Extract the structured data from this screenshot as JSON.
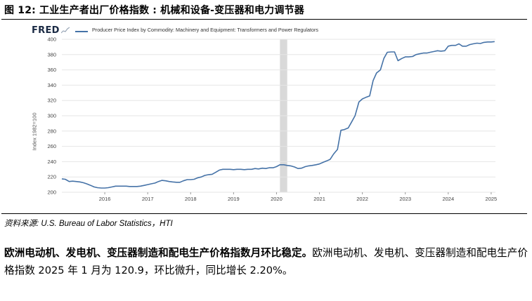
{
  "figure": {
    "title": "图 12: 工业生产者出厂价格指数 : 机械和设备-变压器和电力调节器",
    "source": "资料来源: U.S. Bureau of Labor Statistics，HTI"
  },
  "fred": {
    "logo": "FRED",
    "legend": "Producer Price Index by Commodity: Machinery and Equipment: Transformers and Power Regulators"
  },
  "paragraph": {
    "lead": "欧洲电动机、发电机、变压器制造和配电生产价格指数月环比稳定。",
    "text": "欧洲电动机、发电机、变压器制造和配电生产价格指数 2025 年 1 月为 120.9，环比微升，同比增长 2.20%。"
  },
  "colors": {
    "line": "#4572a7",
    "grid": "#e6e6e6",
    "recession": "#d9d9d9"
  },
  "chart_data": {
    "type": "line",
    "title": "",
    "ylabel": "Index 1982=100",
    "xlabel": "",
    "ylim": [
      200,
      400
    ],
    "yticks": [
      200,
      220,
      240,
      260,
      280,
      300,
      320,
      340,
      360,
      380,
      400
    ],
    "xticks": [
      "2016",
      "2017",
      "2018",
      "2019",
      "2020",
      "2021",
      "2022",
      "2023",
      "2024",
      "2025"
    ],
    "xlim": [
      2015.0,
      2025.1
    ],
    "recession": [
      2020.08,
      2020.25
    ],
    "grid": true,
    "legend_position": "top",
    "series": [
      {
        "name": "Producer Price Index by Commodity: Machinery and Equipment: Transformers and Power Regulators",
        "points": [
          [
            2015.0,
            217.5
          ],
          [
            2015.08,
            217
          ],
          [
            2015.17,
            214
          ],
          [
            2015.25,
            214.5
          ],
          [
            2015.33,
            214
          ],
          [
            2015.42,
            213.5
          ],
          [
            2015.5,
            212.5
          ],
          [
            2015.58,
            211
          ],
          [
            2015.67,
            209
          ],
          [
            2015.75,
            207
          ],
          [
            2015.83,
            206
          ],
          [
            2015.92,
            205.5
          ],
          [
            2016.0,
            205.5
          ],
          [
            2016.08,
            206
          ],
          [
            2016.17,
            207
          ],
          [
            2016.25,
            208
          ],
          [
            2016.33,
            208
          ],
          [
            2016.42,
            208
          ],
          [
            2016.5,
            208
          ],
          [
            2016.58,
            207.5
          ],
          [
            2016.67,
            207.5
          ],
          [
            2016.75,
            207.5
          ],
          [
            2016.83,
            208
          ],
          [
            2016.92,
            209
          ],
          [
            2017.0,
            210
          ],
          [
            2017.08,
            211
          ],
          [
            2017.17,
            212
          ],
          [
            2017.25,
            214
          ],
          [
            2017.33,
            215.5
          ],
          [
            2017.42,
            215
          ],
          [
            2017.5,
            214
          ],
          [
            2017.58,
            213.5
          ],
          [
            2017.67,
            213
          ],
          [
            2017.75,
            213
          ],
          [
            2017.83,
            215
          ],
          [
            2017.92,
            216.5
          ],
          [
            2018.0,
            216.5
          ],
          [
            2018.08,
            217
          ],
          [
            2018.17,
            219
          ],
          [
            2018.25,
            220
          ],
          [
            2018.33,
            222
          ],
          [
            2018.42,
            223
          ],
          [
            2018.5,
            223.5
          ],
          [
            2018.58,
            226
          ],
          [
            2018.67,
            229
          ],
          [
            2018.75,
            230
          ],
          [
            2018.83,
            230
          ],
          [
            2018.92,
            230
          ],
          [
            2019.0,
            229.5
          ],
          [
            2019.08,
            230
          ],
          [
            2019.17,
            230
          ],
          [
            2019.25,
            229.5
          ],
          [
            2019.33,
            230
          ],
          [
            2019.42,
            230
          ],
          [
            2019.5,
            231
          ],
          [
            2019.58,
            230.5
          ],
          [
            2019.67,
            231.5
          ],
          [
            2019.75,
            231
          ],
          [
            2019.83,
            232
          ],
          [
            2019.92,
            232
          ],
          [
            2020.0,
            233.5
          ],
          [
            2020.08,
            236
          ],
          [
            2020.17,
            236
          ],
          [
            2020.25,
            235
          ],
          [
            2020.33,
            234.5
          ],
          [
            2020.42,
            233
          ],
          [
            2020.5,
            231
          ],
          [
            2020.58,
            231.5
          ],
          [
            2020.67,
            233.5
          ],
          [
            2020.75,
            234.5
          ],
          [
            2020.83,
            235
          ],
          [
            2020.92,
            236
          ],
          [
            2021.0,
            237
          ],
          [
            2021.08,
            239
          ],
          [
            2021.17,
            241
          ],
          [
            2021.25,
            243
          ],
          [
            2021.33,
            250
          ],
          [
            2021.42,
            256
          ],
          [
            2021.5,
            281
          ],
          [
            2021.58,
            282
          ],
          [
            2021.67,
            284
          ],
          [
            2021.75,
            292
          ],
          [
            2021.83,
            300
          ],
          [
            2021.92,
            318
          ],
          [
            2022.0,
            322
          ],
          [
            2022.08,
            324
          ],
          [
            2022.17,
            326
          ],
          [
            2022.25,
            346
          ],
          [
            2022.33,
            356
          ],
          [
            2022.42,
            360
          ],
          [
            2022.5,
            375
          ],
          [
            2022.58,
            383
          ],
          [
            2022.67,
            383.5
          ],
          [
            2022.75,
            383.5
          ],
          [
            2022.83,
            372
          ],
          [
            2022.92,
            375
          ],
          [
            2023.0,
            377
          ],
          [
            2023.08,
            377
          ],
          [
            2023.17,
            377.5
          ],
          [
            2023.25,
            380
          ],
          [
            2023.33,
            381
          ],
          [
            2023.42,
            382
          ],
          [
            2023.5,
            382
          ],
          [
            2023.58,
            383
          ],
          [
            2023.67,
            384
          ],
          [
            2023.75,
            385
          ],
          [
            2023.83,
            384.5
          ],
          [
            2023.92,
            385
          ],
          [
            2024.0,
            391
          ],
          [
            2024.08,
            392
          ],
          [
            2024.17,
            392
          ],
          [
            2024.25,
            394
          ],
          [
            2024.33,
            391
          ],
          [
            2024.42,
            391
          ],
          [
            2024.5,
            393
          ],
          [
            2024.58,
            394
          ],
          [
            2024.67,
            395
          ],
          [
            2024.75,
            394.5
          ],
          [
            2024.83,
            396
          ],
          [
            2024.92,
            396.5
          ],
          [
            2025.0,
            396.5
          ],
          [
            2025.08,
            397
          ]
        ]
      }
    ]
  }
}
